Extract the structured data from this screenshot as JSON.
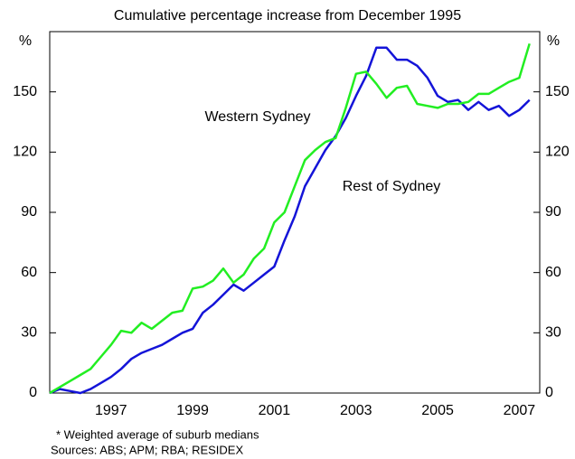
{
  "chart_data": {
    "type": "line",
    "subtitle": "Cumulative percentage increase from December 1995",
    "y_unit": "%",
    "y2_unit": "%",
    "x": [
      1996,
      1996.25,
      1996.5,
      1996.75,
      1997,
      1997.25,
      1997.5,
      1997.75,
      1998,
      1998.25,
      1998.5,
      1998.75,
      1999,
      1999.25,
      1999.5,
      1999.75,
      2000,
      2000.25,
      2000.5,
      2000.75,
      2001,
      2001.25,
      2001.5,
      2001.75,
      2002,
      2002.25,
      2002.5,
      2002.75,
      2003,
      2003.25,
      2003.5,
      2003.75,
      2004,
      2004.25,
      2004.5,
      2004.75,
      2005,
      2005.25,
      2005.5,
      2005.75,
      2006,
      2006.25,
      2006.5,
      2006.75,
      2007,
      2007.25,
      2007.5,
      2007.75
    ],
    "series": [
      {
        "name": "Western Sydney",
        "color": "#1414d8",
        "values": [
          0,
          2,
          1,
          0,
          2,
          5,
          8,
          12,
          17,
          20,
          22,
          24,
          27,
          30,
          32,
          40,
          44,
          49,
          54,
          51,
          55,
          59,
          63,
          76,
          88,
          103,
          112,
          121,
          128,
          137,
          148,
          158,
          172,
          172,
          166,
          166,
          163,
          157,
          148,
          145,
          146,
          141,
          145,
          141,
          143,
          138,
          141,
          146
        ]
      },
      {
        "name": "Rest of Sydney",
        "color": "#22ee22",
        "values": [
          0,
          3,
          6,
          9,
          12,
          18,
          24,
          31,
          30,
          35,
          32,
          36,
          40,
          41,
          52,
          53,
          56,
          62,
          55,
          59,
          67,
          72,
          85,
          90,
          103,
          116,
          121,
          125,
          127,
          142,
          159,
          160,
          154,
          147,
          152,
          153,
          144,
          143,
          142,
          144,
          144,
          145,
          149,
          149,
          152,
          155,
          157,
          174
        ]
      }
    ],
    "xlim": [
      1996,
      2008
    ],
    "xticks": [
      {
        "value": 1997.5,
        "label": "1997"
      },
      {
        "value": 1999.5,
        "label": "1999"
      },
      {
        "value": 2001.5,
        "label": "2001"
      },
      {
        "value": 2003.5,
        "label": "2003"
      },
      {
        "value": 2005.5,
        "label": "2005"
      },
      {
        "value": 2007.5,
        "label": "2007"
      }
    ],
    "ylim": [
      0,
      180
    ],
    "yticks": [
      0,
      30,
      60,
      90,
      120,
      150
    ],
    "y2lim": [
      0,
      180
    ],
    "y2ticks": [
      0,
      30,
      60,
      90,
      120,
      150
    ],
    "footnotes": [
      "*  Weighted average of suburb medians",
      "Sources: ABS; APM; RBA; RESIDEX"
    ]
  }
}
